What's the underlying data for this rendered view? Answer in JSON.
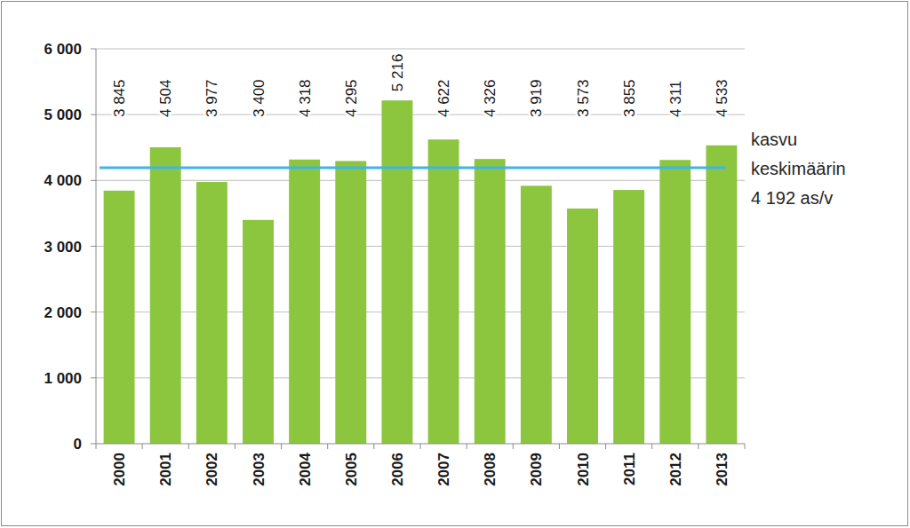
{
  "chart_data": {
    "type": "bar",
    "categories": [
      "2000",
      "2001",
      "2002",
      "2003",
      "2004",
      "2005",
      "2006",
      "2007",
      "2008",
      "2009",
      "2010",
      "2011",
      "2012",
      "2013"
    ],
    "values": [
      3845,
      4504,
      3977,
      3400,
      4318,
      4295,
      5216,
      4622,
      4326,
      3919,
      3573,
      3855,
      4311,
      4533
    ],
    "value_labels": [
      "3 845",
      "4 504",
      "3 977",
      "3 400",
      "4 318",
      "4 295",
      "5 216",
      "4 622",
      "4 326",
      "3 919",
      "3 573",
      "3 855",
      "4 311",
      "4 533"
    ],
    "data_labels": true,
    "color": "#8cc63f",
    "ylim": [
      0,
      6000
    ],
    "yticks": [
      0,
      {
        "value": 1000,
        "label": "1 000"
      },
      {
        "value": 2000,
        "label": "2 000"
      },
      {
        "value": 3000,
        "label": "3 000"
      },
      {
        "value": 4000,
        "label": "4 000"
      },
      {
        "value": 5000,
        "label": "5 000"
      },
      {
        "value": 6000,
        "label": "6 000"
      }
    ],
    "grid": true,
    "average": {
      "value": 4192,
      "label": [
        "kasvu",
        "keskimäärin",
        "4 192 as/v"
      ],
      "color": "#3db6e6"
    }
  }
}
